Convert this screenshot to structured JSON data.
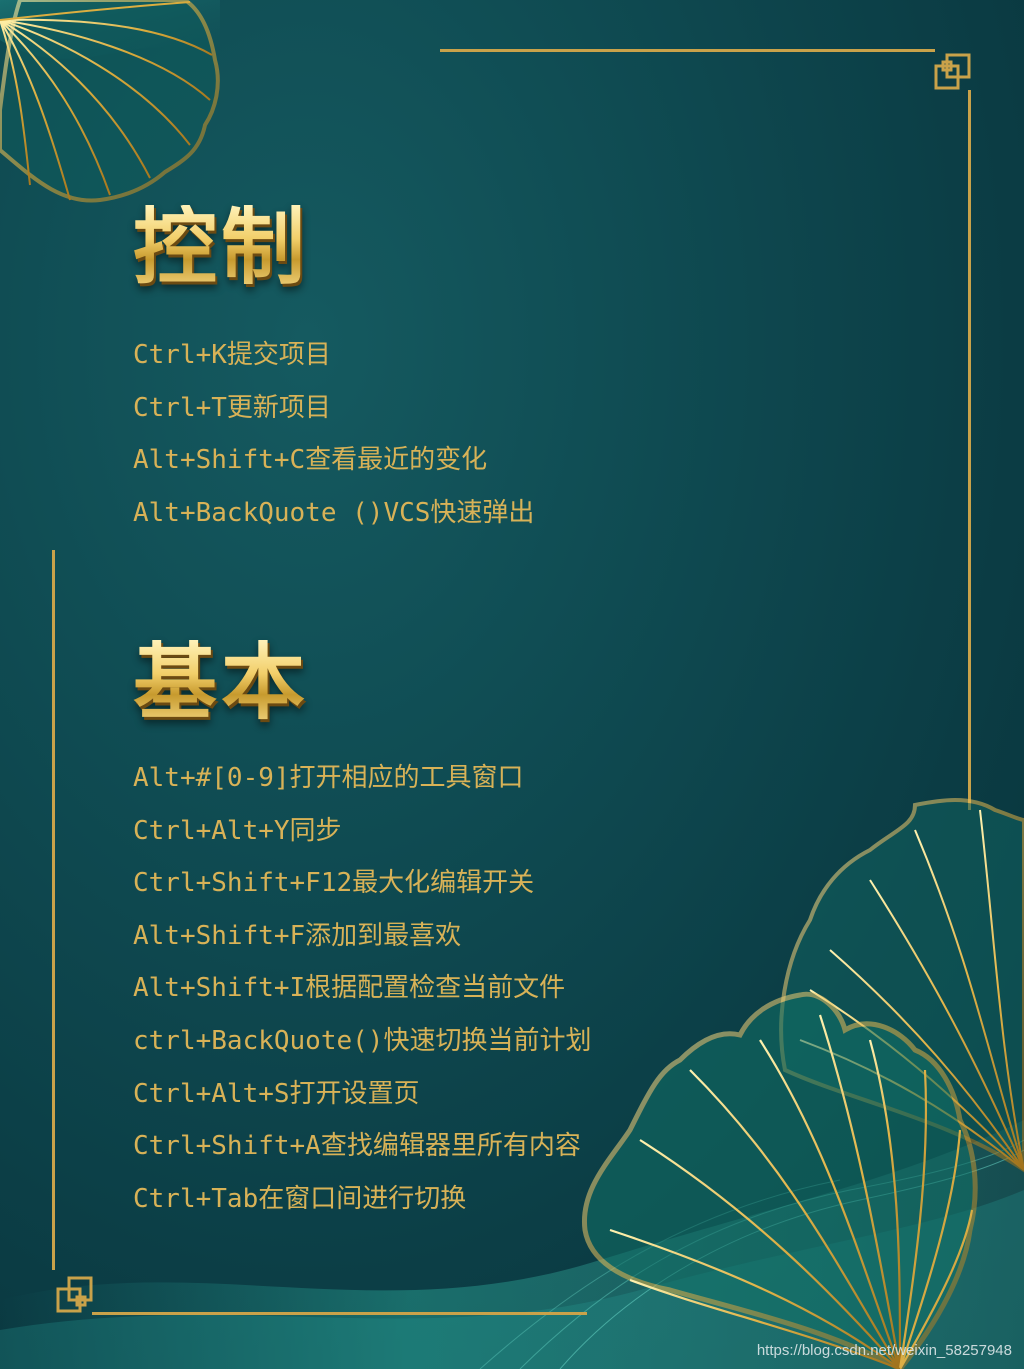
{
  "sections": {
    "control": {
      "title": "控制",
      "items": [
        "Ctrl+K提交项目",
        "Ctrl+T更新项目",
        "Alt+Shift+C查看最近的变化",
        "Alt+BackQuote ()VCS快速弹出"
      ]
    },
    "basic": {
      "title": "基本",
      "items": [
        "Alt+#[0-9]打开相应的工具窗口",
        "Ctrl+Alt+Y同步",
        "Ctrl+Shift+F12最大化编辑开关",
        "Alt+Shift+F添加到最喜欢",
        "Alt+Shift+I根据配置检查当前文件",
        "ctrl+BackQuote()快速切换当前计划",
        "Ctrl+Alt+S打开设置页",
        "Ctrl+Shift+A查找编辑器里所有内容",
        "Ctrl+Tab在窗口间进行切换"
      ]
    }
  },
  "watermark": "https://blog.csdn.net/weixin_58257948",
  "colors": {
    "background": "#0f4b52",
    "gold": "#d8b257",
    "frame": "#c9a24a"
  },
  "decorations": [
    "ginkgo-leaf-icon",
    "frame-corner-knot-icon",
    "silk-wave-decoration"
  ]
}
